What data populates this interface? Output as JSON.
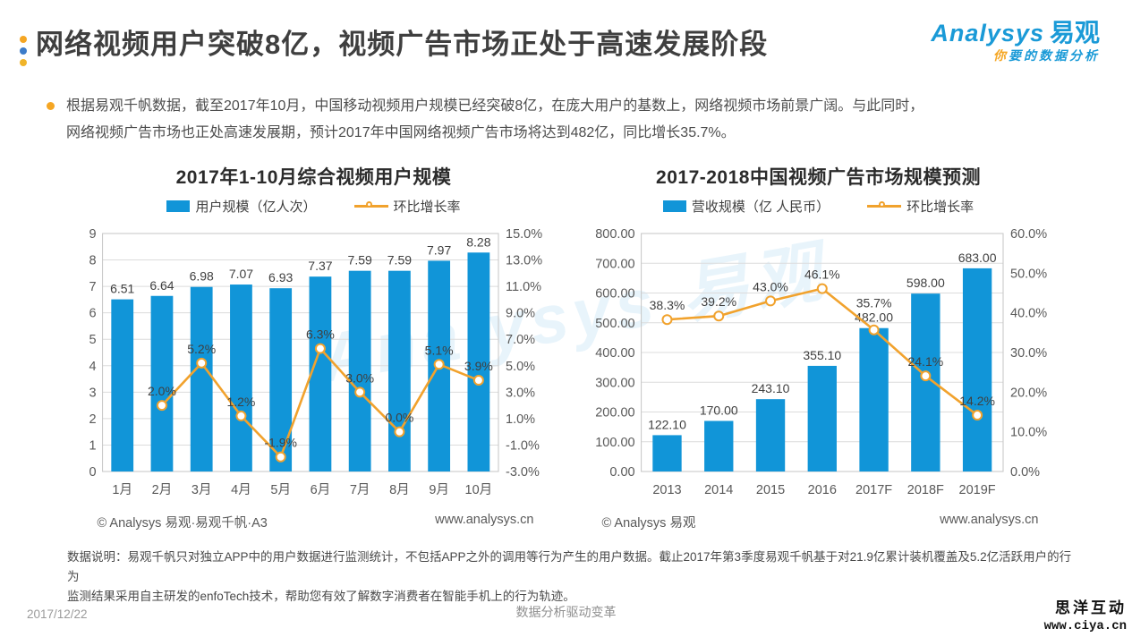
{
  "header": {
    "title": "网络视频用户突破8亿，视频广告市场正处于高速发展阶段",
    "logo": {
      "brand_en": "Analysys",
      "brand_cn": "易观",
      "tagline_prefix": "你",
      "tagline_rest": "要的数据分析"
    }
  },
  "summary": {
    "line1": "根据易观千帆数据，截至2017年10月，中国移动视频用户规模已经突破8亿，在庞大用户的基数上，网络视频市场前景广阔。与此同时，",
    "line2": "网络视频广告市场也正处高速发展期，预计2017年中国网络视频广告市场将达到482亿，同比增长35.7%。"
  },
  "colors": {
    "bar": "#1195D8",
    "line": "#F1A22D",
    "logo_blue": "#1A9AD7",
    "tagline_orange": "#F5A623",
    "dot_orange": "#F5A623",
    "dot_blue": "#3D7CC9",
    "dot_yellow": "#F0B429",
    "bullet_orange": "#F5A623"
  },
  "charts": {
    "watermark": "Analysys 易观"
  },
  "chart_data": [
    {
      "type": "bar",
      "title": "2017年1-10月综合视频用户规模",
      "categories": [
        "1月",
        "2月",
        "3月",
        "4月",
        "5月",
        "6月",
        "7月",
        "8月",
        "9月",
        "10月"
      ],
      "series": [
        {
          "name": "用户规模（亿人次）",
          "kind": "bar",
          "axis": "left",
          "values": [
            6.51,
            6.64,
            6.98,
            7.07,
            6.93,
            7.37,
            7.59,
            7.59,
            7.97,
            8.28
          ],
          "labels": [
            "6.51",
            "6.64",
            "6.98",
            "7.07",
            "6.93",
            "7.37",
            "7.59",
            "7.59",
            "7.97",
            "8.28"
          ]
        },
        {
          "name": "环比增长率",
          "kind": "line",
          "axis": "right",
          "values": [
            null,
            2.0,
            5.2,
            1.2,
            -1.9,
            6.3,
            3.0,
            0.0,
            5.1,
            3.9
          ],
          "labels": [
            null,
            "2.0%",
            "5.2%",
            "1.2%",
            "-1.9%",
            "6.3%",
            "3.0%",
            "0.0%",
            "5.1%",
            "3.9%"
          ]
        }
      ],
      "left_axis": {
        "min": 0,
        "max": 9,
        "ticks": [
          "9",
          "8",
          "7",
          "6",
          "5",
          "4",
          "3",
          "2",
          "1",
          "0"
        ]
      },
      "right_axis": {
        "min": -3,
        "max": 15,
        "ticks": [
          "15.0%",
          "13.0%",
          "11.0%",
          "9.0%",
          "7.0%",
          "5.0%",
          "3.0%",
          "1.0%",
          "-1.0%",
          "-3.0%"
        ]
      },
      "grid": true,
      "legend_position": "top",
      "footer_left": "© Analysys 易观·易观千帆·A3",
      "footer_right": "www.analysys.cn"
    },
    {
      "type": "bar",
      "title": "2017-2018中国视频广告市场规模预测",
      "categories": [
        "2013",
        "2014",
        "2015",
        "2016",
        "2017F",
        "2018F",
        "2019F"
      ],
      "series": [
        {
          "name": "营收规模（亿 人民币）",
          "kind": "bar",
          "axis": "left",
          "values": [
            122.1,
            170.0,
            243.1,
            355.1,
            482.0,
            598.0,
            683.0
          ],
          "labels": [
            "122.10",
            "170.00",
            "243.10",
            "355.10",
            "482.00",
            "598.00",
            "683.00"
          ]
        },
        {
          "name": "环比增长率",
          "kind": "line",
          "axis": "right",
          "values": [
            38.3,
            39.2,
            43.0,
            46.1,
            35.7,
            24.1,
            14.2
          ],
          "labels": [
            "38.3%",
            "39.2%",
            "43.0%",
            "46.1%",
            "35.7%",
            "24.1%",
            "14.2%"
          ]
        }
      ],
      "left_axis": {
        "min": 0,
        "max": 800,
        "ticks": [
          "800.00",
          "700.00",
          "600.00",
          "500.00",
          "400.00",
          "300.00",
          "200.00",
          "100.00",
          "0.00"
        ]
      },
      "right_axis": {
        "min": 0,
        "max": 60,
        "ticks": [
          "60.0%",
          "50.0%",
          "40.0%",
          "30.0%",
          "20.0%",
          "10.0%",
          "0.0%"
        ]
      },
      "grid": true,
      "legend_position": "top",
      "footer_left": "© Analysys 易观",
      "footer_right": "www.analysys.cn"
    }
  ],
  "note": {
    "line1": "数据说明：易观千帆只对独立APP中的用户数据进行监测统计，不包括APP之外的调用等行为产生的用户数据。截止2017年第3季度易观千帆基于对21.9亿累计装机覆盖及5.2亿活跃用户的行为",
    "line2": "监测结果采用自主研发的enfoTech技术，帮助您有效了解数字消费者在智能手机上的行为轨迹。"
  },
  "footer": {
    "date": "2017/12/22",
    "center": "数据分析驱动变革",
    "site_cn": "思洋互动",
    "site_url": "www.ciya.cn"
  }
}
